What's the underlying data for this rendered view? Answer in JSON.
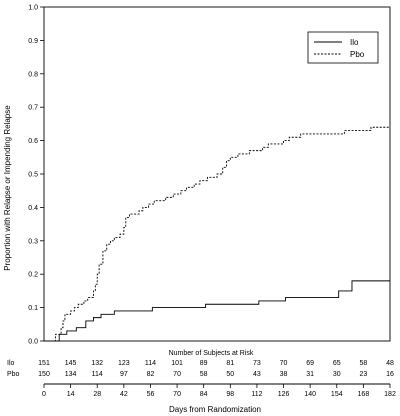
{
  "chart_data": {
    "type": "line",
    "xlabel": "Days from Randomization",
    "ylabel": "Proportion with Relapse or Impending Relapse",
    "xlim": [
      0,
      182
    ],
    "ylim": [
      0.0,
      1.0
    ],
    "x_ticks": [
      0,
      14,
      28,
      42,
      56,
      70,
      84,
      98,
      112,
      126,
      140,
      154,
      168,
      182
    ],
    "y_ticks": [
      "0.0",
      "0.1",
      "0.2",
      "0.3",
      "0.4",
      "0.5",
      "0.6",
      "0.7",
      "0.8",
      "0.9",
      "1.0"
    ],
    "legend_position": "top-right",
    "series": [
      {
        "name": "Ilo",
        "style": "solid",
        "color": "#000000",
        "points": [
          [
            0,
            0
          ],
          [
            7,
            0
          ],
          [
            8,
            0.02
          ],
          [
            11,
            0.02
          ],
          [
            12,
            0.03
          ],
          [
            16,
            0.03
          ],
          [
            17,
            0.04
          ],
          [
            21,
            0.04
          ],
          [
            22,
            0.06
          ],
          [
            25,
            0.06
          ],
          [
            26,
            0.07
          ],
          [
            29,
            0.07
          ],
          [
            30,
            0.08
          ],
          [
            36,
            0.08
          ],
          [
            37,
            0.09
          ],
          [
            56,
            0.09
          ],
          [
            57,
            0.1
          ],
          [
            84,
            0.1
          ],
          [
            85,
            0.11
          ],
          [
            112,
            0.11
          ],
          [
            113,
            0.12
          ],
          [
            126,
            0.12
          ],
          [
            127,
            0.13
          ],
          [
            154,
            0.13
          ],
          [
            155,
            0.15
          ],
          [
            161,
            0.15
          ],
          [
            162,
            0.18
          ],
          [
            182,
            0.18
          ]
        ]
      },
      {
        "name": "Pbo",
        "style": "dashed",
        "color": "#000000",
        "points": [
          [
            0,
            0
          ],
          [
            5,
            0
          ],
          [
            6,
            0.02
          ],
          [
            8,
            0.02
          ],
          [
            9,
            0.04
          ],
          [
            10,
            0.06
          ],
          [
            11,
            0.08
          ],
          [
            14,
            0.09
          ],
          [
            16,
            0.1
          ],
          [
            18,
            0.11
          ],
          [
            21,
            0.12
          ],
          [
            23,
            0.13
          ],
          [
            26,
            0.15
          ],
          [
            27,
            0.17
          ],
          [
            28,
            0.2
          ],
          [
            29,
            0.23
          ],
          [
            31,
            0.27
          ],
          [
            33,
            0.29
          ],
          [
            35,
            0.3
          ],
          [
            37,
            0.31
          ],
          [
            40,
            0.32
          ],
          [
            42,
            0.34
          ],
          [
            43,
            0.37
          ],
          [
            45,
            0.38
          ],
          [
            50,
            0.39
          ],
          [
            52,
            0.4
          ],
          [
            55,
            0.41
          ],
          [
            58,
            0.42
          ],
          [
            64,
            0.43
          ],
          [
            68,
            0.44
          ],
          [
            72,
            0.45
          ],
          [
            75,
            0.46
          ],
          [
            79,
            0.47
          ],
          [
            82,
            0.48
          ],
          [
            86,
            0.49
          ],
          [
            91,
            0.5
          ],
          [
            94,
            0.52
          ],
          [
            96,
            0.54
          ],
          [
            98,
            0.55
          ],
          [
            102,
            0.56
          ],
          [
            108,
            0.57
          ],
          [
            115,
            0.58
          ],
          [
            118,
            0.59
          ],
          [
            126,
            0.6
          ],
          [
            129,
            0.61
          ],
          [
            135,
            0.62
          ],
          [
            150,
            0.62
          ],
          [
            158,
            0.63
          ],
          [
            170,
            0.63
          ],
          [
            172,
            0.64
          ],
          [
            182,
            0.64
          ]
        ]
      }
    ],
    "risk_table": {
      "title": "Number of Subjects at Risk",
      "rows": [
        {
          "label": "Ilo",
          "values": [
            "151",
            "145",
            "132",
            "123",
            "114",
            "101",
            "89",
            "81",
            "73",
            "70",
            "69",
            "65",
            "58",
            "48"
          ]
        },
        {
          "label": "Pbo",
          "values": [
            "150",
            "134",
            "114",
            "97",
            "82",
            "70",
            "58",
            "50",
            "43",
            "38",
            "31",
            "30",
            "23",
            "16"
          ]
        }
      ]
    }
  }
}
